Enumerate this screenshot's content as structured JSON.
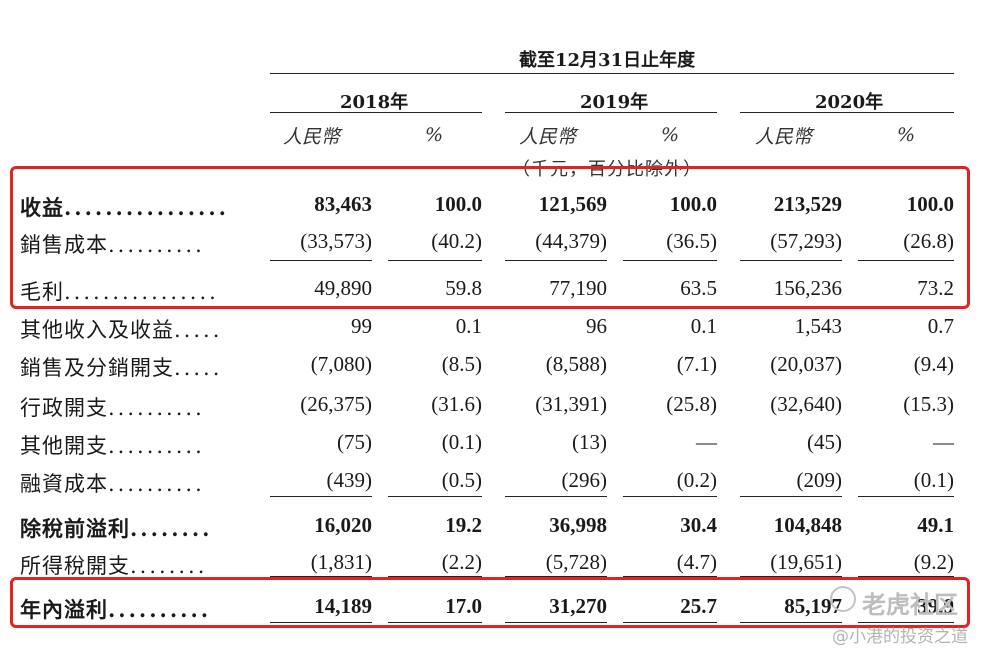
{
  "header": {
    "period_title": "截至12月31日止年度",
    "years": [
      "2018年",
      "2019年",
      "2020年"
    ],
    "currency_label": "人民幣",
    "percent_label": "%",
    "unit_note": "（千元，百分比除外）"
  },
  "rows": [
    {
      "label": "收益",
      "dots": "................",
      "bold": true,
      "values": [
        "83,463",
        "100.0",
        "121,569",
        "100.0",
        "213,529",
        "100.0"
      ]
    },
    {
      "label": "銷售成本",
      "dots": "..........",
      "bold": false,
      "values": [
        "(33,573)",
        "(40.2)",
        "(44,379)",
        "(36.5)",
        "(57,293)",
        "(26.8)"
      ]
    },
    {
      "label": "毛利",
      "dots": "................",
      "bold": false,
      "values": [
        "49,890",
        "59.8",
        "77,190",
        "63.5",
        "156,236",
        "73.2"
      ]
    },
    {
      "label": "其他收入及收益",
      "dots": ".....",
      "bold": false,
      "values": [
        "99",
        "0.1",
        "96",
        "0.1",
        "1,543",
        "0.7"
      ]
    },
    {
      "label": "銷售及分銷開支",
      "dots": ".....",
      "bold": false,
      "values": [
        "(7,080)",
        "(8.5)",
        "(8,588)",
        "(7.1)",
        "(20,037)",
        "(9.4)"
      ]
    },
    {
      "label": "行政開支",
      "dots": "..........",
      "bold": false,
      "values": [
        "(26,375)",
        "(31.6)",
        "(31,391)",
        "(25.8)",
        "(32,640)",
        "(15.3)"
      ]
    },
    {
      "label": "其他開支",
      "dots": "..........",
      "bold": false,
      "values": [
        "(75)",
        "(0.1)",
        "(13)",
        "—",
        "(45)",
        "—"
      ]
    },
    {
      "label": "融資成本",
      "dots": "..........",
      "bold": false,
      "values": [
        "(439)",
        "(0.5)",
        "(296)",
        "(0.2)",
        "(209)",
        "(0.1)"
      ]
    },
    {
      "label": "除稅前溢利",
      "dots": "........",
      "bold": true,
      "values": [
        "16,020",
        "19.2",
        "36,998",
        "30.4",
        "104,848",
        "49.1"
      ]
    },
    {
      "label": "所得稅開支",
      "dots": "........",
      "bold": false,
      "values": [
        "(1,831)",
        "(2.2)",
        "(5,728)",
        "(4.7)",
        "(19,651)",
        "(9.2)"
      ]
    },
    {
      "label": "年內溢利",
      "dots": "..........",
      "bold": true,
      "values": [
        "14,189",
        "17.0",
        "31,270",
        "25.7",
        "85,197",
        "39.9"
      ]
    }
  ],
  "watermark": {
    "brand": "老虎社区",
    "author": "@小港的投资之道"
  },
  "colors": {
    "highlight": "#e32222"
  }
}
